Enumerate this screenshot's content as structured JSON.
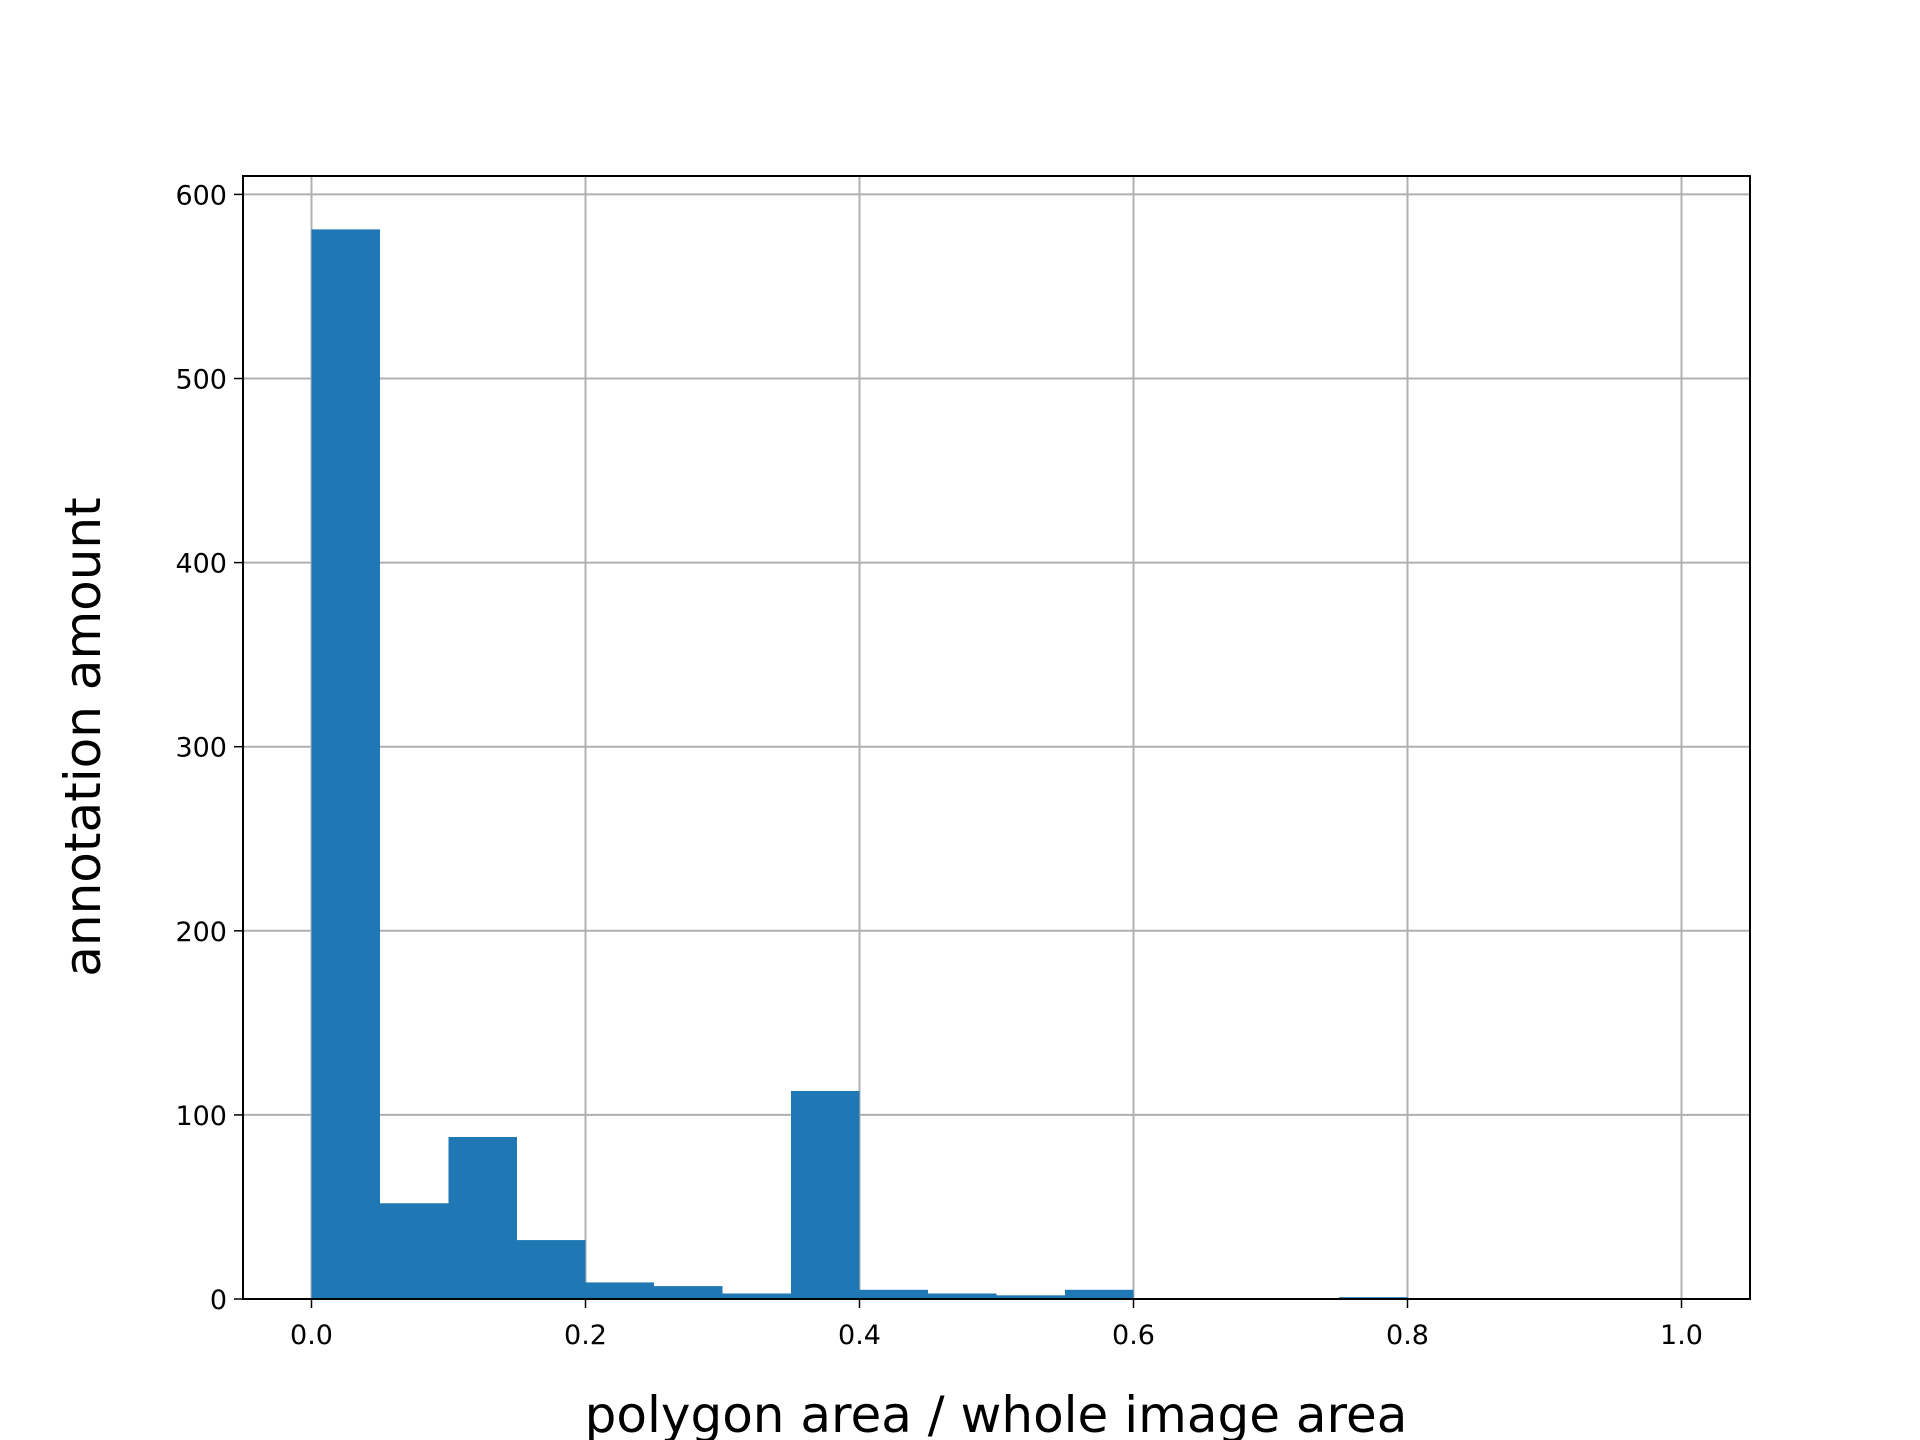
{
  "chart_data": {
    "type": "histogram",
    "xlabel": "polygon area / whole image area",
    "ylabel": "annotation amount",
    "bins": [
      0,
      0.05,
      0.1,
      0.15,
      0.2,
      0.25,
      0.3,
      0.35,
      0.4,
      0.45,
      0.5,
      0.55,
      0.6,
      0.65,
      0.7,
      0.75,
      0.8,
      0.85,
      0.9,
      0.95,
      1.0
    ],
    "values": [
      581,
      52,
      88,
      32,
      9,
      7,
      3,
      113,
      5,
      3,
      2,
      5,
      0,
      0,
      0,
      1,
      0,
      0,
      0,
      0
    ],
    "color": "#1f77b4",
    "xlim": [
      -0.05,
      1.05
    ],
    "xticks": [
      {
        "value": 0,
        "label": "0.0"
      },
      0.2,
      0.4,
      0.6,
      0.8,
      {
        "value": 1,
        "label": "1.0"
      }
    ],
    "ylim": [
      0,
      610
    ],
    "yticks": [
      0,
      100,
      200,
      300,
      400,
      500,
      600
    ],
    "grid": true
  }
}
